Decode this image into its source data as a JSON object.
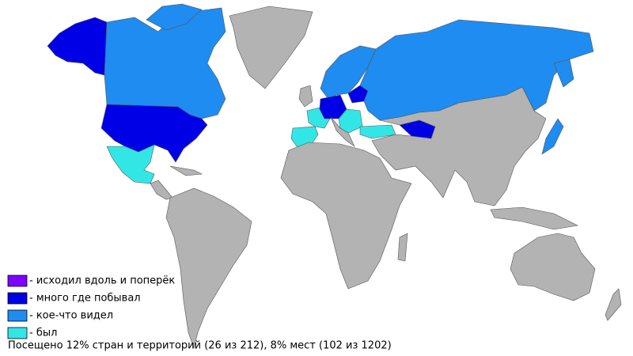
{
  "legend": {
    "entries": [
      {
        "label": "- исходил вдоль и поперёк",
        "color": "#8000ff"
      },
      {
        "label": "- много где побывал",
        "color": "#0000e6"
      },
      {
        "label": "- кое-что видел",
        "color": "#1e8cf0"
      },
      {
        "label": "- был",
        "color": "#33e6e6"
      }
    ]
  },
  "summary": "Посещено 12% стран и территорий (26 из 212), 8% мест (102 из 1202)"
}
